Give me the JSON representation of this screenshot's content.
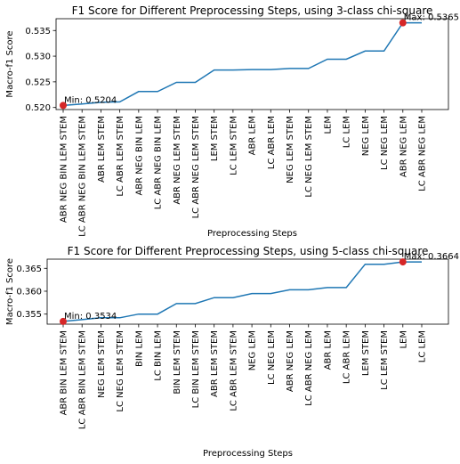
{
  "chart_data": [
    {
      "type": "line",
      "title": "F1 Score for Different Preprocessing Steps, using 3-class chi-square",
      "xlabel": "Preprocessing Steps",
      "ylabel": "Macro-f1 Score",
      "categories": [
        "ABR NEG BIN LEM STEM",
        "LC ABR NEG BIN LEM STEM",
        "ABR LEM STEM",
        "LC ABR LEM STEM",
        "ABR NEG BIN LEM",
        "LC ABR NEG BIN LEM",
        "ABR NEG LEM STEM",
        "LC ABR NEG LEM STEM",
        "LEM STEM",
        "LC LEM STEM",
        "ABR LEM",
        "LC ABR LEM",
        "NEG LEM STEM",
        "LC NEG LEM STEM",
        "LEM",
        "LC LEM",
        "NEG LEM",
        "LC NEG LEM",
        "ABR NEG LEM",
        "LC ABR NEG LEM"
      ],
      "values": [
        0.5204,
        0.5207,
        0.521,
        0.5211,
        0.5231,
        0.5231,
        0.5249,
        0.5249,
        0.5273,
        0.5273,
        0.5274,
        0.5274,
        0.5276,
        0.5276,
        0.5294,
        0.5294,
        0.531,
        0.531,
        0.5365,
        0.5365
      ],
      "yticks": [
        "0.520",
        "0.525",
        "0.530",
        "0.535"
      ],
      "yticks_values": [
        0.52,
        0.525,
        0.53,
        0.535
      ],
      "ylim": [
        0.5196,
        0.5373
      ],
      "grid": false,
      "line_color": "#1f77b4",
      "marker_color": "#d62728",
      "annotations": [
        {
          "label": "Min: 0.5204",
          "index": 0
        },
        {
          "label": "Max: 0.5365",
          "index": 18
        }
      ]
    },
    {
      "type": "line",
      "title": "F1 Score for Different Preprocessing Steps, using 5-class chi-square",
      "xlabel": "Preprocessing Steps",
      "ylabel": "Macro-f1 Score",
      "categories": [
        "ABR BIN LEM STEM",
        "LC ABR BIN LEM STEM",
        "NEG LEM STEM",
        "LC NEG LEM STEM",
        "BIN LEM",
        "LC BIN LEM",
        "BIN LEM STEM",
        "LC BIN LEM STEM",
        "ABR LEM STEM",
        "LC ABR LEM STEM",
        "NEG LEM",
        "LC NEG LEM",
        "ABR NEG LEM",
        "LC ABR NEG LEM",
        "ABR LEM",
        "LC ABR LEM",
        "LEM STEM",
        "LC LEM STEM",
        "LEM",
        "LC LEM"
      ],
      "values": [
        0.3534,
        0.3538,
        0.3542,
        0.3542,
        0.355,
        0.355,
        0.3573,
        0.3573,
        0.3586,
        0.3586,
        0.3595,
        0.3595,
        0.3603,
        0.3603,
        0.3608,
        0.3608,
        0.3659,
        0.3659,
        0.3664,
        0.3664
      ],
      "yticks": [
        "0.355",
        "0.360",
        "0.365"
      ],
      "yticks_values": [
        0.355,
        0.36,
        0.365
      ],
      "ylim": [
        0.3528,
        0.367
      ],
      "grid": false,
      "line_color": "#1f77b4",
      "marker_color": "#d62728",
      "annotations": [
        {
          "label": "Min: 0.3534",
          "index": 0
        },
        {
          "label": "Max: 0.3664",
          "index": 18
        }
      ]
    }
  ]
}
